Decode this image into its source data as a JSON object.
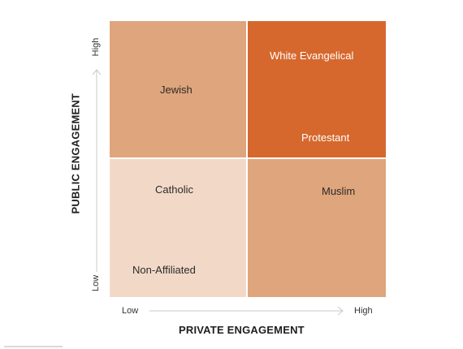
{
  "colors": {
    "top_left": "#DFA57C",
    "top_right": "#D6682E",
    "bottom_left": "#F2D9C7",
    "bottom_right": "#DFA57C",
    "arrow": "#c9c9c9"
  },
  "quadrants": {
    "top_left": {
      "labels": [
        "Jewish"
      ]
    },
    "top_right": {
      "labels": [
        "White Evangelical",
        "Protestant"
      ]
    },
    "bottom_left": {
      "labels": [
        "Catholic",
        "Non-Affiliated"
      ]
    },
    "bottom_right": {
      "labels": [
        "Muslim"
      ]
    }
  },
  "y_axis": {
    "title": "PUBLIC ENGAGEMENT",
    "low": "Low",
    "high": "High"
  },
  "x_axis": {
    "title": "PRIVATE ENGAGEMENT",
    "low": "Low",
    "high": "High"
  }
}
